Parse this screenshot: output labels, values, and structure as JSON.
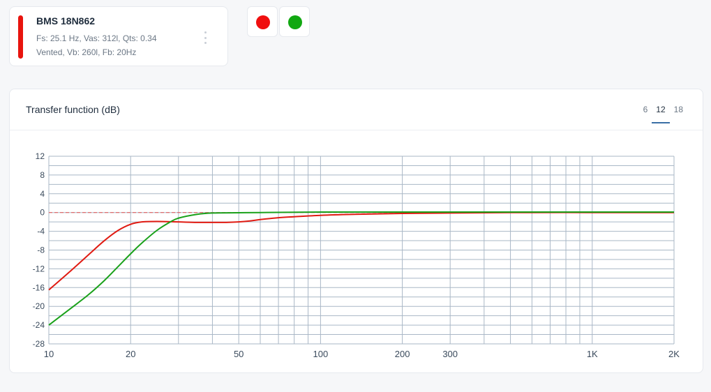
{
  "driver_card": {
    "name": "BMS 18N862",
    "params": "Fs: 25.1 Hz, Vas: 312l, Qts: 0.34",
    "box": "Vented, Vb: 260l, Fb: 20Hz",
    "color": "#e8140e"
  },
  "swatches": [
    {
      "color": "#f00f0f",
      "icon": "red-circle-icon"
    },
    {
      "color": "#11a811",
      "icon": "green-circle-icon"
    }
  ],
  "panel": {
    "title": "Transfer function (dB)",
    "tabs": [
      {
        "label": "6",
        "active": false
      },
      {
        "label": "12",
        "active": true
      },
      {
        "label": "18",
        "active": false
      }
    ]
  },
  "chart_data": {
    "type": "line",
    "x_scale": "log",
    "xlim": [
      10,
      2000
    ],
    "ylim": [
      -28,
      12
    ],
    "yticks": [
      12,
      8,
      4,
      0,
      -4,
      -8,
      -12,
      -16,
      -20,
      -24,
      -28
    ],
    "ytick_labels": [
      "12",
      "8",
      "4",
      "0",
      "-4",
      "-8",
      "-12",
      "-16",
      "-20",
      "-24",
      "-28"
    ],
    "xticks": [
      10,
      20,
      50,
      100,
      200,
      300,
      1000,
      2000
    ],
    "xtick_labels": [
      "10",
      "20",
      "50",
      "100",
      "200",
      "300",
      "1K",
      "2K"
    ],
    "grid": true,
    "reference_lines": [
      {
        "y": 0,
        "color": "#e06060",
        "style": "dashed"
      }
    ],
    "series": [
      {
        "color": "#e01b12",
        "x": [
          10,
          12,
          14,
          16,
          18,
          20,
          22,
          25,
          30,
          35,
          40,
          45,
          50,
          55,
          60,
          70,
          80,
          100,
          130,
          200,
          300,
          500,
          1000,
          2000
        ],
        "y": [
          -16.5,
          -12.5,
          -9.0,
          -6.0,
          -3.8,
          -2.5,
          -2.0,
          -1.9,
          -2.0,
          -2.1,
          -2.1,
          -2.1,
          -2.0,
          -1.8,
          -1.5,
          -1.1,
          -0.9,
          -0.6,
          -0.4,
          -0.2,
          -0.1,
          0.0,
          0.0,
          0.0
        ]
      },
      {
        "color": "#1aa11a",
        "x": [
          10,
          12,
          14,
          16,
          18,
          20,
          22,
          25,
          28,
          30,
          35,
          40,
          50,
          60,
          100,
          200,
          500,
          1000,
          2000
        ],
        "y": [
          -24.0,
          -20.5,
          -17.5,
          -14.5,
          -11.5,
          -8.8,
          -6.5,
          -3.8,
          -2.0,
          -1.2,
          -0.4,
          -0.1,
          -0.05,
          0.0,
          0.1,
          0.1,
          0.1,
          0.1,
          0.1
        ]
      }
    ]
  }
}
